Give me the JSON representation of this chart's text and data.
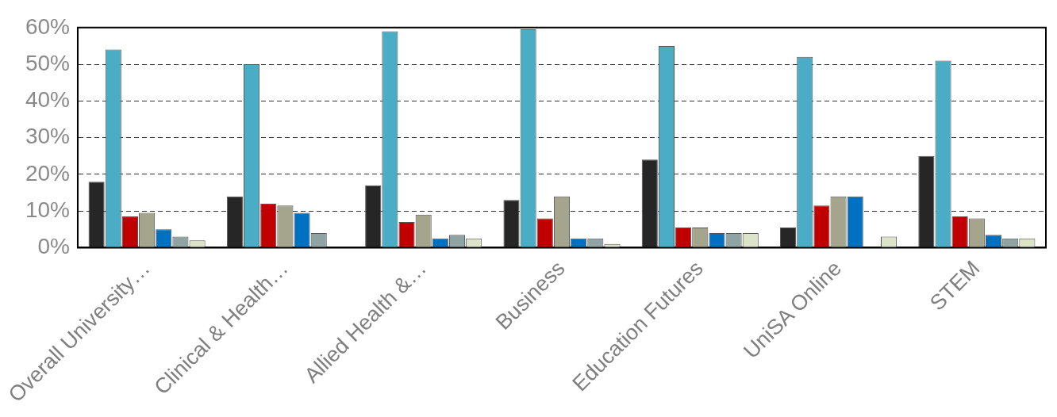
{
  "chart_data": {
    "type": "bar",
    "categories": [
      "Overall University…",
      "Clinical & Health…",
      "Allied Health &…",
      "Business",
      "Education Futures",
      "UniSA Online",
      "STEM"
    ],
    "series": [
      {
        "color": "#262626",
        "values": [
          18,
          14,
          17,
          13,
          24,
          5.5,
          25
        ]
      },
      {
        "color": "#4bacc6",
        "values": [
          54,
          50,
          59,
          59.5,
          55,
          52,
          51
        ]
      },
      {
        "color": "#c00000",
        "values": [
          8.5,
          12,
          7,
          8,
          5.5,
          11.5,
          8.5
        ]
      },
      {
        "color": "#a5a58d",
        "values": [
          9.5,
          11.5,
          9,
          14,
          5.5,
          14,
          8
        ]
      },
      {
        "color": "#0070c0",
        "values": [
          5,
          9.5,
          2.5,
          2.5,
          4,
          14,
          3.5
        ]
      },
      {
        "color": "#8fa3a3",
        "values": [
          3,
          4,
          3.5,
          2.5,
          4,
          null,
          2.5
        ]
      },
      {
        "color": "#dde3c8",
        "values": [
          2,
          null,
          2.5,
          1,
          4,
          3,
          2.5
        ]
      }
    ],
    "ylim": [
      0,
      60
    ],
    "yticks": [
      {
        "value": 0,
        "label": "0%"
      },
      {
        "value": 10,
        "label": "10%"
      },
      {
        "value": 20,
        "label": "20%"
      },
      {
        "value": 30,
        "label": "30%"
      },
      {
        "value": 40,
        "label": "40%"
      },
      {
        "value": 50,
        "label": "50%"
      },
      {
        "value": 60,
        "label": "60%"
      }
    ],
    "grid": "y",
    "legend": false
  }
}
